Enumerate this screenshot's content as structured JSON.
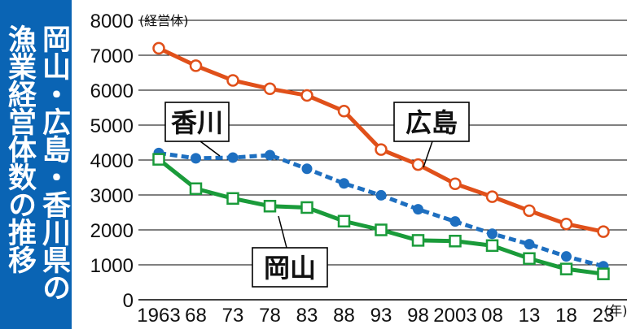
{
  "side_title": [
    "岡山・広島・香川県の",
    "漁業経営体数の推移"
  ],
  "colors": {
    "hiroshima": "#e0501a",
    "kagawa": "#1e6fc0",
    "okayama": "#1a9b3a",
    "side_bg": "#0a64b4"
  },
  "chart_data": {
    "type": "line",
    "title": "岡山・広島・香川県の漁業経営体数の推移",
    "y_unit": "(経営体)",
    "x_unit": "(年)",
    "ylim": [
      0,
      8000
    ],
    "yticks": [
      "0",
      "1000",
      "2000",
      "3000",
      "4000",
      "5000",
      "6000",
      "7000",
      "8000"
    ],
    "categories": [
      "1963",
      "68",
      "73",
      "78",
      "83",
      "88",
      "93",
      "98",
      "2003",
      "08",
      "13",
      "18",
      "23"
    ],
    "grid": true,
    "series": [
      {
        "name": "広島",
        "key": "hiroshima",
        "marker": "circle-open",
        "values": [
          7200,
          6700,
          6280,
          6040,
          5850,
          5400,
          4300,
          3870,
          3320,
          2950,
          2550,
          2170,
          1950
        ]
      },
      {
        "name": "香川",
        "key": "kagawa",
        "marker": "circle-filled",
        "dashed": true,
        "values": [
          4200,
          4050,
          4070,
          4140,
          3750,
          3330,
          2990,
          2590,
          2240,
          1890,
          1590,
          1240,
          960
        ]
      },
      {
        "name": "岡山",
        "key": "okayama",
        "marker": "square-open",
        "values": [
          4020,
          3180,
          2900,
          2680,
          2640,
          2250,
          2000,
          1700,
          1680,
          1550,
          1180,
          880,
          740
        ]
      }
    ]
  }
}
